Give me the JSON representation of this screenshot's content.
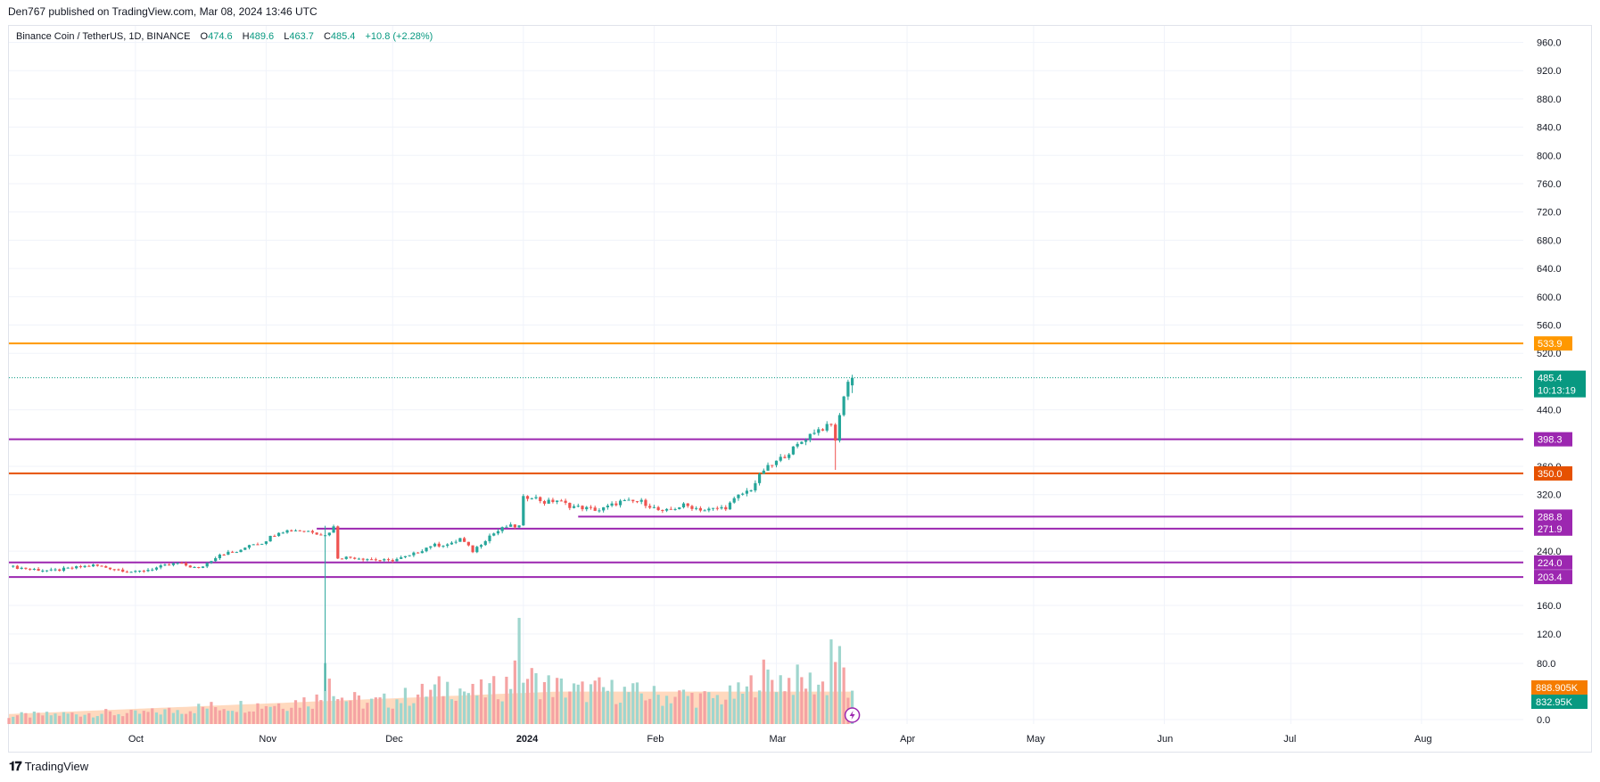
{
  "header": {
    "published": "Den767 published on TradingView.com, Mar 08, 2024 13:46 UTC"
  },
  "legend": {
    "symbol": "Binance Coin / TetherUS, 1D, BINANCE",
    "open_label": "O",
    "open": "474.6",
    "high_label": "H",
    "high": "489.6",
    "low_label": "L",
    "low": "463.7",
    "close_label": "C",
    "close": "485.4",
    "change": "+10.8 (+2.28%)"
  },
  "footer": {
    "logo": "TradingView"
  },
  "colors": {
    "up": "#26a69a",
    "down": "#ef5350",
    "vol_up": "#9fd6ce",
    "vol_down": "#f5a3a3",
    "level_purple": "#9c27b0",
    "level_orange": "#ff9800",
    "level_darkorange": "#e65100",
    "price_tag": "#089981",
    "vol_ma": "#ffcca8"
  },
  "chart_data": {
    "type": "candlestick",
    "title": "",
    "y_ticks": [
      "960.0",
      "920.0",
      "880.0",
      "840.0",
      "800.0",
      "760.0",
      "720.0",
      "680.0",
      "640.0",
      "600.0",
      "560.0",
      "520.0",
      "440.0",
      "360.0",
      "320.0",
      "240.0",
      "160.0",
      "120.0",
      "80.0",
      "0.0"
    ],
    "x_labels": [
      {
        "label": "Oct",
        "day": 30
      },
      {
        "label": "Nov",
        "day": 61
      },
      {
        "label": "Dec",
        "day": 91
      },
      {
        "label": "2024",
        "day": 122,
        "bold": true
      },
      {
        "label": "Feb",
        "day": 153
      },
      {
        "label": "Mar",
        "day": 182
      },
      {
        "label": "Apr",
        "day": 213
      },
      {
        "label": "May",
        "day": 243
      },
      {
        "label": "Jun",
        "day": 274
      },
      {
        "label": "Jul",
        "day": 304
      },
      {
        "label": "Aug",
        "day": 335
      }
    ],
    "levels": [
      {
        "value": 533.9,
        "label": "533.9",
        "color": "#ff9800"
      },
      {
        "value": 398.3,
        "label": "398.3",
        "color": "#9c27b0"
      },
      {
        "value": 350.0,
        "label": "350.0",
        "color": "#e65100"
      },
      {
        "value": 288.8,
        "label": "288.8",
        "color": "#9c27b0",
        "start_day": 135
      },
      {
        "value": 271.9,
        "label": "271.9",
        "color": "#9c27b0",
        "start_day": 73
      },
      {
        "value": 224.0,
        "label": "224.0",
        "color": "#9c27b0"
      },
      {
        "value": 203.4,
        "label": "203.4",
        "color": "#9c27b0"
      }
    ],
    "last_price": {
      "value": 485.4,
      "label": "485.4",
      "countdown": "10:13:19"
    },
    "volume_labels": [
      {
        "label": "888.905K",
        "color": "#f57c00"
      },
      {
        "label": "832.95K",
        "color": "#089981"
      }
    ],
    "close_keypoints": [
      [
        0,
        218
      ],
      [
        10,
        212
      ],
      [
        20,
        220
      ],
      [
        30,
        210
      ],
      [
        40,
        223
      ],
      [
        45,
        215
      ],
      [
        50,
        236
      ],
      [
        55,
        240
      ],
      [
        57,
        250
      ],
      [
        60,
        252
      ],
      [
        64,
        268
      ],
      [
        68,
        270
      ],
      [
        72,
        268
      ],
      [
        75,
        262
      ],
      [
        77,
        274
      ],
      [
        78,
        231
      ],
      [
        82,
        231
      ],
      [
        90,
        226
      ],
      [
        95,
        233
      ],
      [
        100,
        248
      ],
      [
        105,
        250
      ],
      [
        107,
        258
      ],
      [
        110,
        240
      ],
      [
        114,
        262
      ],
      [
        118,
        275
      ],
      [
        121,
        275
      ],
      [
        122,
        315
      ],
      [
        124,
        318
      ],
      [
        127,
        309
      ],
      [
        130,
        312
      ],
      [
        133,
        304
      ],
      [
        140,
        298
      ],
      [
        145,
        310
      ],
      [
        150,
        310
      ],
      [
        155,
        295
      ],
      [
        160,
        305
      ],
      [
        165,
        298
      ],
      [
        170,
        302
      ],
      [
        173,
        318
      ],
      [
        176,
        328
      ],
      [
        179,
        355
      ],
      [
        181,
        362
      ],
      [
        185,
        380
      ],
      [
        188,
        395
      ],
      [
        191,
        410
      ],
      [
        195,
        418
      ],
      [
        196,
        398
      ],
      [
        198,
        462
      ],
      [
        199,
        480
      ],
      [
        200,
        485.4
      ]
    ],
    "last_candle": {
      "open": 474.6,
      "high": 489.6,
      "low": 463.7,
      "close": 485.4
    },
    "volume_keypoints": [
      [
        0,
        18
      ],
      [
        10,
        20
      ],
      [
        20,
        24
      ],
      [
        30,
        22
      ],
      [
        40,
        30
      ],
      [
        45,
        35
      ],
      [
        50,
        38
      ],
      [
        55,
        40
      ],
      [
        60,
        42
      ],
      [
        65,
        45
      ],
      [
        70,
        50
      ],
      [
        74,
        55
      ],
      [
        75,
        198
      ],
      [
        76,
        120
      ],
      [
        78,
        60
      ],
      [
        85,
        45
      ],
      [
        90,
        50
      ],
      [
        95,
        60
      ],
      [
        100,
        70
      ],
      [
        105,
        85
      ],
      [
        110,
        65
      ],
      [
        115,
        75
      ],
      [
        119,
        90
      ],
      [
        120,
        180
      ],
      [
        121,
        170
      ],
      [
        122,
        110
      ],
      [
        125,
        90
      ],
      [
        130,
        80
      ],
      [
        135,
        70
      ],
      [
        140,
        75
      ],
      [
        150,
        65
      ],
      [
        155,
        60
      ],
      [
        160,
        62
      ],
      [
        165,
        55
      ],
      [
        170,
        58
      ],
      [
        175,
        70
      ],
      [
        178,
        110
      ],
      [
        180,
        100
      ],
      [
        185,
        95
      ],
      [
        190,
        90
      ],
      [
        194,
        85
      ],
      [
        195,
        180
      ],
      [
        196,
        150
      ],
      [
        197,
        130
      ],
      [
        198,
        110
      ],
      [
        199,
        70
      ],
      [
        200,
        55
      ]
    ],
    "volume_scale_max": 200
  }
}
